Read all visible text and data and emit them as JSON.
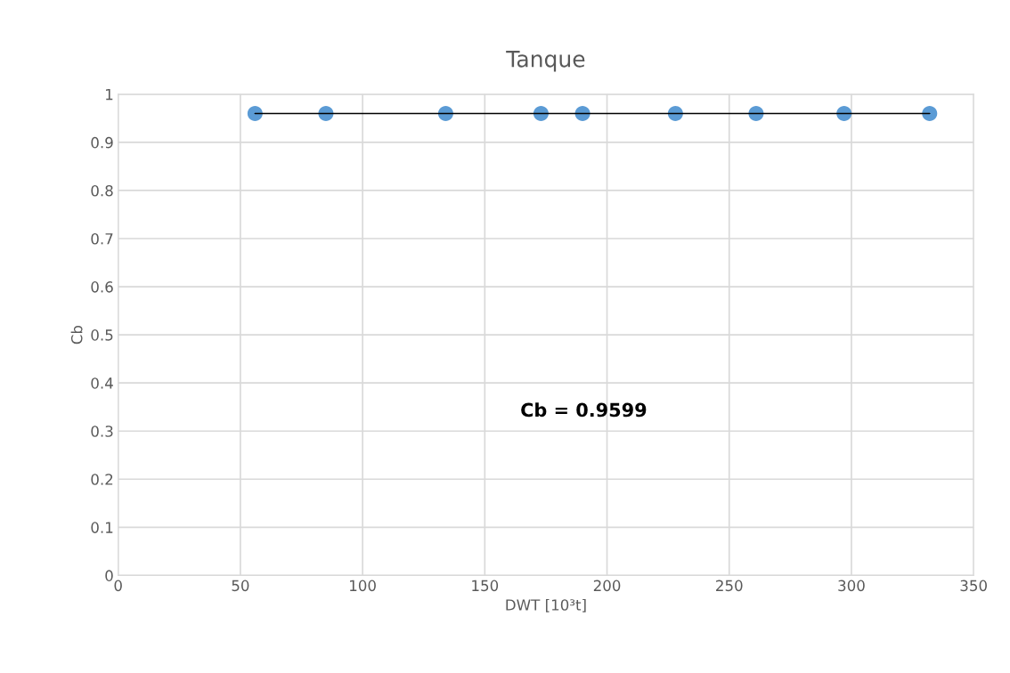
{
  "chart_data": {
    "type": "scatter",
    "title": "Tanque",
    "xlabel": "DWT [10³t]",
    "ylabel": "Cb",
    "series": [
      {
        "color": "#5b9bd5",
        "marker": "circle",
        "x": [
          56,
          85,
          134,
          173,
          190,
          228,
          261,
          297,
          332
        ],
        "values": [
          0.96,
          0.96,
          0.96,
          0.96,
          0.96,
          0.96,
          0.96,
          0.96,
          0.96
        ]
      },
      {
        "type": "line",
        "color": "#000000",
        "marker": "none",
        "line_style": "solid",
        "x": [
          56,
          332
        ],
        "values": [
          0.96,
          0.96
        ]
      }
    ],
    "annotations": [
      "Cb = 0.9599"
    ],
    "xlim": [
      0,
      350
    ],
    "xticks": [
      0,
      50,
      100,
      150,
      200,
      250,
      300,
      350
    ],
    "ylim": [
      0,
      1
    ],
    "yticks": [
      0,
      0.1,
      0.2,
      0.3,
      0.4,
      0.5,
      0.6,
      0.7,
      0.8,
      0.9,
      1
    ],
    "grid": true,
    "legend": false
  }
}
